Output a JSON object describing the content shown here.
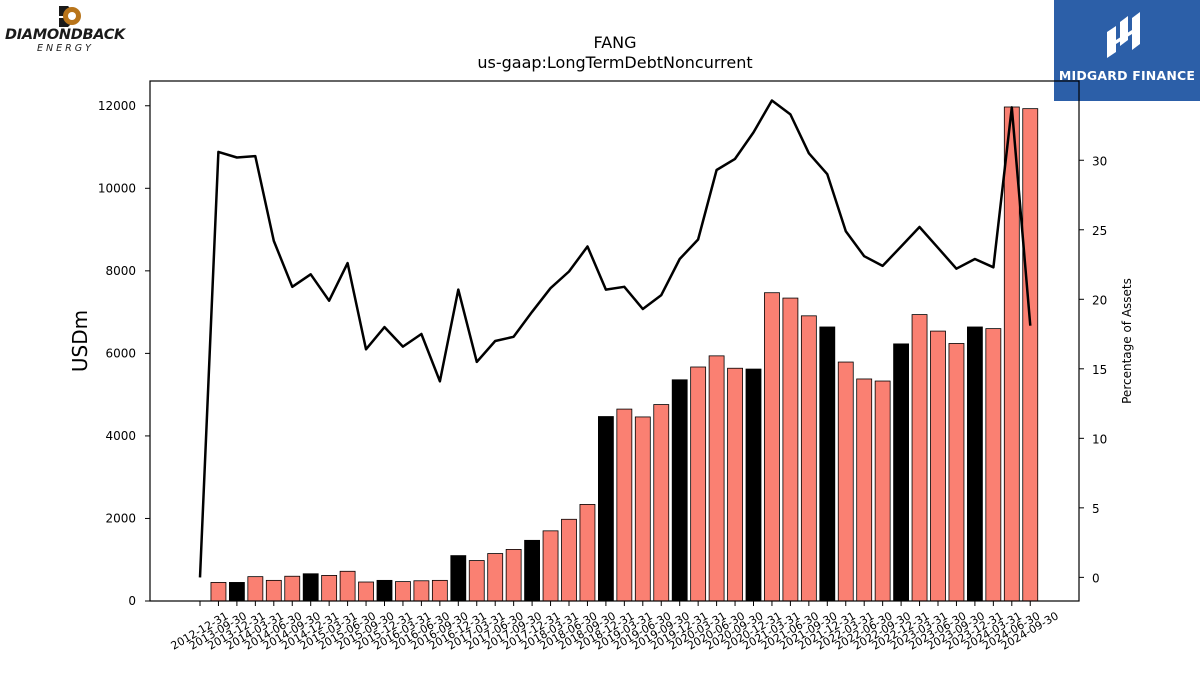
{
  "logos": {
    "left_name": "DIAMONDBACK",
    "left_sub": "ENERGY",
    "left_icon": "diamondback-logo-icon",
    "right_name": "MIDGARD FINANCE",
    "right_icon": "midgard-logo-icon",
    "right_bg": "#2c5fa8"
  },
  "chart_data": {
    "type": "bar",
    "title": "FANG",
    "subtitle": "us-gaap:LongTermDebtNoncurrent",
    "ylabel": "USDm",
    "y2label": "Percentage of Assets",
    "ylim": [
      0,
      12600
    ],
    "y2lim": [
      -1.7,
      35.7
    ],
    "yticks": [
      0,
      2000,
      4000,
      6000,
      8000,
      10000,
      12000
    ],
    "y2ticks": [
      0,
      5,
      10,
      15,
      20,
      25,
      30
    ],
    "grid": false,
    "colors": {
      "bar": "#fa8072",
      "bar_q4": "#000000",
      "line": "#000000"
    },
    "categories": [
      "2012-12-31",
      "2013-09-30",
      "2013-12-31",
      "2014-03-31",
      "2014-06-30",
      "2014-09-30",
      "2014-12-31",
      "2015-03-31",
      "2015-06-30",
      "2015-09-30",
      "2015-12-31",
      "2016-03-31",
      "2016-06-30",
      "2016-09-30",
      "2016-12-31",
      "2017-03-31",
      "2017-06-30",
      "2017-09-30",
      "2017-12-31",
      "2018-03-31",
      "2018-06-30",
      "2018-09-30",
      "2018-12-31",
      "2019-03-31",
      "2019-06-30",
      "2019-09-30",
      "2019-12-31",
      "2020-03-31",
      "2020-06-30",
      "2020-09-30",
      "2020-12-31",
      "2021-03-31",
      "2021-06-30",
      "2021-09-30",
      "2021-12-31",
      "2022-03-31",
      "2022-06-30",
      "2022-09-30",
      "2022-12-31",
      "2023-03-31",
      "2023-06-30",
      "2023-09-30",
      "2023-12-31",
      "2024-03-31",
      "2024-06-30",
      "2024-09-30"
    ],
    "series": [
      {
        "kind": "bar",
        "values": [
          0,
          450,
          450,
          590,
          500,
          600,
          660,
          620,
          720,
          460,
          500,
          470,
          490,
          500,
          1100,
          980,
          1150,
          1250,
          1470,
          1700,
          1980,
          2340,
          4470,
          4650,
          4460,
          4760,
          5360,
          5670,
          5940,
          5640,
          5620,
          7470,
          7340,
          6910,
          6640,
          5790,
          5380,
          5330,
          6230,
          6940,
          6540,
          6240,
          6640,
          6600,
          11970,
          11930
        ]
      },
      {
        "kind": "line",
        "axis": "right",
        "values": [
          0,
          30.6,
          30.2,
          30.3,
          24.2,
          20.9,
          21.8,
          19.9,
          22.6,
          16.4,
          18.0,
          16.6,
          17.5,
          14.1,
          20.7,
          15.5,
          17.0,
          17.3,
          19.1,
          20.8,
          22.0,
          23.8,
          20.7,
          20.9,
          19.3,
          20.3,
          22.9,
          24.3,
          29.3,
          30.1,
          32.0,
          34.3,
          33.3,
          30.5,
          29.0,
          24.9,
          23.1,
          22.4,
          23.8,
          25.2,
          23.7,
          22.2,
          22.9,
          22.3,
          33.8,
          18.1
        ]
      }
    ]
  }
}
